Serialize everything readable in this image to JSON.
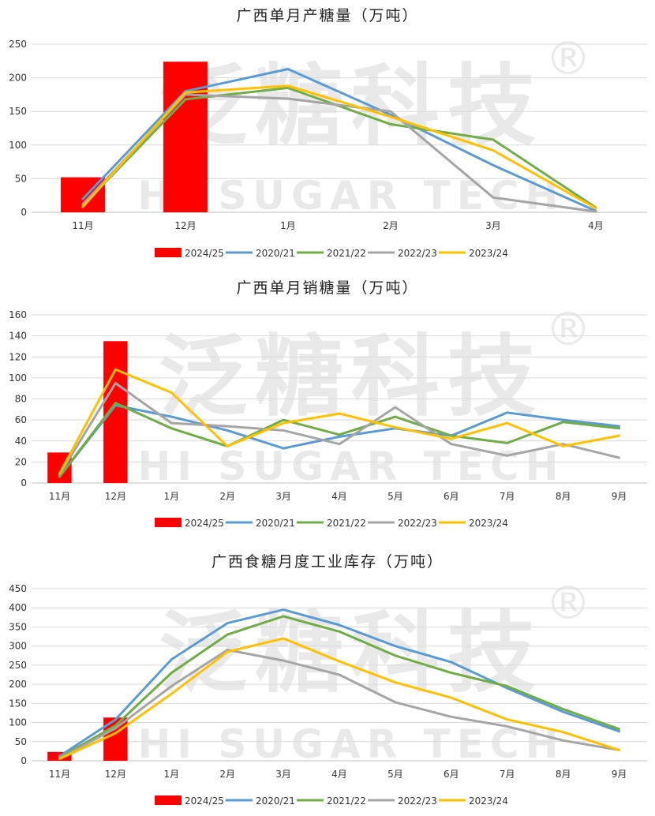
{
  "colors": {
    "2024/25": "#ff0000",
    "2020/21": "#5b9bd5",
    "2021/22": "#70ad47",
    "2022/23": "#a5a5a5",
    "2023/24": "#ffc000"
  },
  "watermark": {
    "brand": "泛糖科技",
    "sub": "HI SUGAR TECH",
    "registered": "®"
  },
  "chart_data": [
    {
      "type": "bar+line",
      "title": "广西单月产糖量（万吨）",
      "categories": [
        "11月",
        "12月",
        "1月",
        "2月",
        "3月",
        "4月"
      ],
      "ylim": [
        0,
        250
      ],
      "yticks": [
        0,
        50,
        100,
        150,
        200,
        250
      ],
      "grid": true,
      "legend_position": "bottom",
      "bar_series": {
        "name": "2024/25",
        "values": [
          52,
          224
        ]
      },
      "series": [
        {
          "name": "2020/21",
          "values": [
            20,
            180,
            213,
            145,
            70,
            2
          ]
        },
        {
          "name": "2021/22",
          "values": [
            10,
            168,
            185,
            131,
            108,
            7
          ]
        },
        {
          "name": "2022/23",
          "values": [
            12,
            175,
            169,
            150,
            22,
            1
          ]
        },
        {
          "name": "2023/24",
          "values": [
            8,
            178,
            188,
            142,
            92,
            6
          ]
        }
      ]
    },
    {
      "type": "bar+line",
      "title": "广西单月销糖量（万吨）",
      "categories": [
        "11月",
        "12月",
        "1月",
        "2月",
        "3月",
        "4月",
        "5月",
        "6月",
        "7月",
        "8月",
        "9月"
      ],
      "ylim": [
        0,
        160
      ],
      "yticks": [
        0,
        20,
        40,
        60,
        80,
        100,
        120,
        140,
        160
      ],
      "grid": true,
      "legend_position": "bottom",
      "bar_series": {
        "name": "2024/25",
        "values": [
          29,
          135
        ]
      },
      "series": [
        {
          "name": "2020/21",
          "values": [
            6,
            74,
            63,
            50,
            33,
            44,
            52,
            45,
            67,
            60,
            54
          ]
        },
        {
          "name": "2021/22",
          "values": [
            6,
            76,
            52,
            35,
            60,
            46,
            63,
            45,
            38,
            58,
            52
          ]
        },
        {
          "name": "2022/23",
          "values": [
            8,
            95,
            57,
            54,
            50,
            37,
            72,
            37,
            26,
            37,
            24
          ]
        },
        {
          "name": "2023/24",
          "values": [
            9,
            108,
            86,
            35,
            57,
            66,
            53,
            42,
            57,
            35,
            45
          ]
        }
      ]
    },
    {
      "type": "bar+line",
      "title": "广西食糖月度工业库存（万吨）",
      "categories": [
        "11月",
        "12月",
        "1月",
        "2月",
        "3月",
        "4月",
        "5月",
        "6月",
        "7月",
        "8月",
        "9月"
      ],
      "ylim": [
        0,
        450
      ],
      "yticks": [
        0,
        50,
        100,
        150,
        200,
        250,
        300,
        350,
        400,
        450
      ],
      "grid": true,
      "legend_position": "bottom",
      "bar_series": {
        "name": "2024/25",
        "values": [
          23,
          113
        ]
      },
      "series": [
        {
          "name": "2020/21",
          "values": [
            12,
            108,
            265,
            360,
            395,
            355,
            300,
            258,
            190,
            128,
            77
          ]
        },
        {
          "name": "2021/22",
          "values": [
            8,
            92,
            230,
            330,
            378,
            338,
            275,
            230,
            195,
            135,
            83
          ]
        },
        {
          "name": "2022/23",
          "values": [
            6,
            85,
            195,
            290,
            262,
            225,
            153,
            115,
            90,
            53,
            28
          ]
        },
        {
          "name": "2023/24",
          "values": [
            5,
            72,
            175,
            285,
            320,
            260,
            205,
            165,
            108,
            75,
            28
          ]
        }
      ]
    }
  ]
}
